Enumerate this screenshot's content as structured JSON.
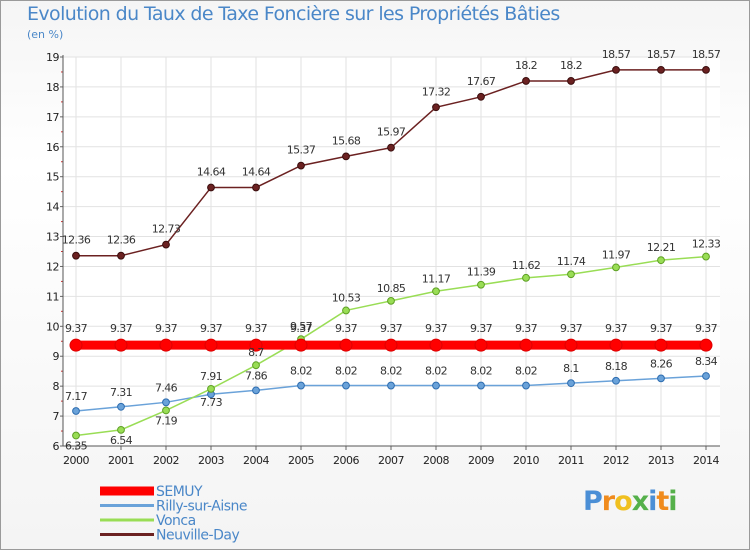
{
  "chart_data": {
    "type": "line",
    "title": "Evolution du Taux de Taxe Foncière sur les Propriétés Bâties",
    "ylabel": "(en %)",
    "xlabel": "",
    "ylim": [
      6,
      19
    ],
    "yticks": [
      "6",
      "7",
      "8",
      "9",
      "10",
      "11",
      "12",
      "13",
      "14",
      "15",
      "16",
      "17",
      "18",
      "19"
    ],
    "categories": [
      "2000",
      "2001",
      "2002",
      "2003",
      "2004",
      "2005",
      "2006",
      "2007",
      "2008",
      "2009",
      "2010",
      "2011",
      "2012",
      "2013",
      "2014"
    ],
    "series": [
      {
        "name": "SEMUY",
        "color": "#ff0000",
        "values": [
          9.37,
          9.37,
          9.37,
          9.37,
          9.37,
          9.37,
          9.37,
          9.37,
          9.37,
          9.37,
          9.37,
          9.37,
          9.37,
          9.37,
          9.37
        ],
        "labels": [
          "9.37",
          "9.37",
          "9.37",
          "9.37",
          "9.37",
          "9.37",
          "9.37",
          "9.37",
          "9.37",
          "9.37",
          "9.37",
          "9.37",
          "9.37",
          "9.37",
          "9.37"
        ]
      },
      {
        "name": "Rilly-sur-Aisne",
        "color": "#6aa2d9",
        "values": [
          7.17,
          7.31,
          7.46,
          7.73,
          7.86,
          8.02,
          8.02,
          8.02,
          8.02,
          8.02,
          8.02,
          8.1,
          8.18,
          8.26,
          8.34
        ],
        "labels": [
          "7.17",
          "7.31",
          "7.46",
          "7.73",
          "7.86",
          "8.02",
          "8.02",
          "8.02",
          "8.02",
          "8.02",
          "8.02",
          "8.1",
          "8.18",
          "8.26",
          "8.34"
        ]
      },
      {
        "name": "Vonca",
        "color": "#99dd55",
        "values": [
          6.35,
          6.54,
          7.19,
          7.91,
          8.7,
          9.57,
          10.53,
          10.85,
          11.17,
          11.39,
          11.62,
          11.74,
          11.97,
          12.21,
          12.33
        ],
        "labels": [
          "6.35",
          "6.54",
          "7.19",
          "7.91",
          "8.7",
          "9.57",
          "10.53",
          "10.85",
          "11.17",
          "11.39",
          "11.62",
          "11.74",
          "11.97",
          "12.21",
          "12.33"
        ]
      },
      {
        "name": "Neuville-Day",
        "color": "#6b2121",
        "values": [
          12.36,
          12.36,
          12.73,
          14.64,
          14.64,
          15.37,
          15.68,
          15.97,
          17.32,
          17.67,
          18.2,
          18.2,
          18.57,
          18.57,
          18.57
        ],
        "labels": [
          "12.36",
          "12.36",
          "12.73",
          "14.64",
          "14.64",
          "15.37",
          "15.68",
          "15.97",
          "17.32",
          "17.67",
          "18.2",
          "18.2",
          "18.57",
          "18.57",
          "18.57"
        ]
      }
    ],
    "grid": true,
    "legend_position": "bottom-left"
  },
  "branding": {
    "logo_letters": [
      "P",
      "r",
      "o",
      "x",
      "i",
      "t",
      "i"
    ],
    "logo_colors": [
      "#4b8fd6",
      "#f08b1d",
      "#f0c020",
      "#55b04a",
      "#4b8fd6",
      "#f08b1d",
      "#55b04a"
    ]
  }
}
